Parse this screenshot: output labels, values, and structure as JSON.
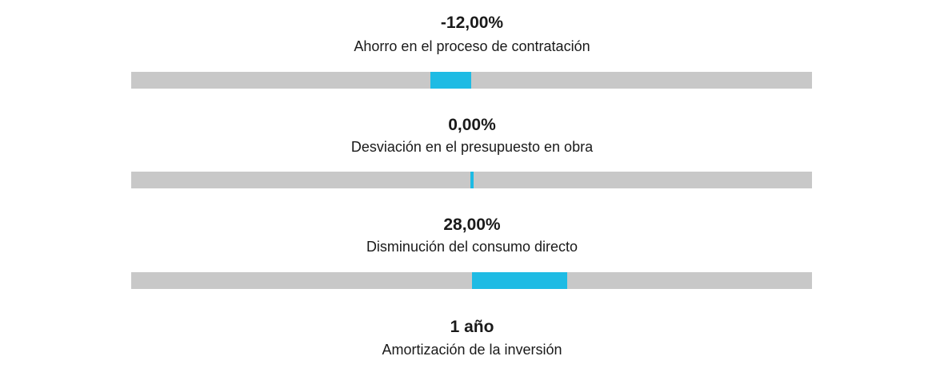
{
  "colors": {
    "track": "#c8c8c8",
    "fill": "#1ebbe4",
    "text": "#1a1a1a"
  },
  "chart_data": {
    "type": "bar",
    "orientation": "horizontal",
    "baseline": 0,
    "xlim": [
      -100,
      100
    ],
    "grid": false,
    "legend": "none",
    "metrics": [
      {
        "value_label": "-12,00%",
        "label": "Ahorro en el proceso de contratación",
        "value": -12
      },
      {
        "value_label": "0,00%",
        "label": "Desviación en el presupuesto en obra",
        "value": 0
      },
      {
        "value_label": "28,00%",
        "label": "Disminución del consumo directo",
        "value": 28
      },
      {
        "value_label": "1 año",
        "label": "Amortización de la inversión"
      }
    ]
  }
}
